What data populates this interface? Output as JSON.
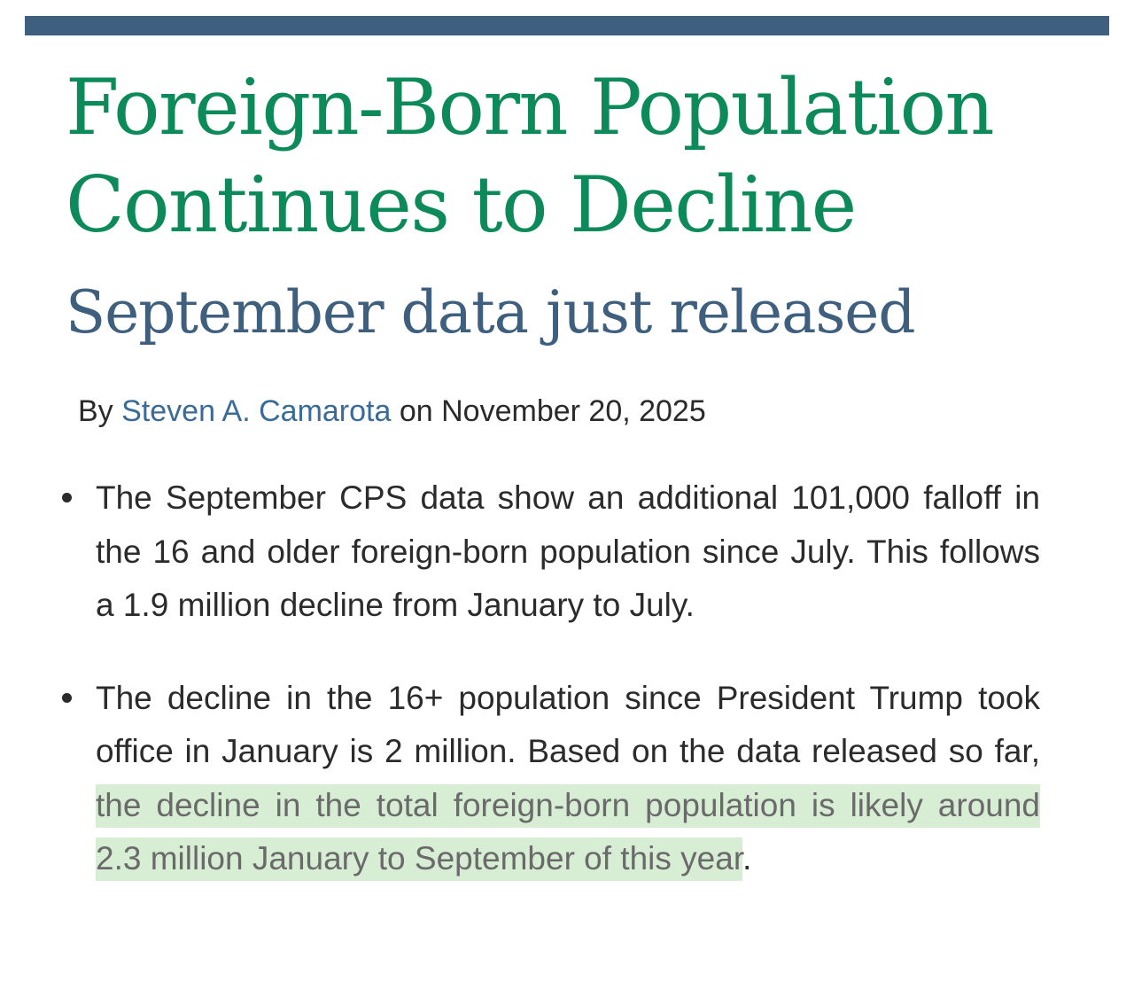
{
  "article": {
    "title": "Foreign-Born Population Continues to Decline",
    "subtitle": "September data just released",
    "byline": {
      "prefix": "By ",
      "author": "Steven A. Camarota",
      "date_prefix": " on ",
      "date": "November 20, 2025"
    },
    "bullets": [
      {
        "text": "The September CPS data show an additional 101,000 falloff in the 16 and older foreign-born population since July. This follows a 1.9 million decline from January to July."
      },
      {
        "text_before": "The decline in the 16+ population since President Trump took office in January is 2 million. Based on the data released so far, ",
        "highlighted": "the decline in the total foreign-born population is likely around 2.3 million January to September of this year",
        "text_after": "."
      }
    ]
  },
  "colors": {
    "top_bar": "#3f5f7e",
    "title": "#0d8a5a",
    "subtitle": "#3f5f7e",
    "author_link": "#3a6b98",
    "highlight_bg": "#d7eed4"
  }
}
